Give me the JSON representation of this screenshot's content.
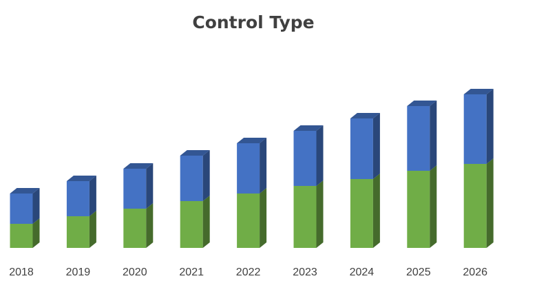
{
  "chart_data": {
    "type": "bar3d-stacked",
    "title": "Control Type",
    "categories": [
      "2018",
      "2019",
      "2020",
      "2021",
      "2022",
      "2023",
      "2024",
      "2025",
      "2026"
    ],
    "series": [
      {
        "color": "#70ad47",
        "values": [
          35,
          46,
          57,
          68,
          79,
          90,
          100,
          112,
          122
        ]
      },
      {
        "color": "#4472c4",
        "values": [
          44,
          51,
          58,
          66,
          73,
          80,
          88,
          94,
          101
        ]
      }
    ],
    "ylim": [
      0,
      250
    ]
  }
}
